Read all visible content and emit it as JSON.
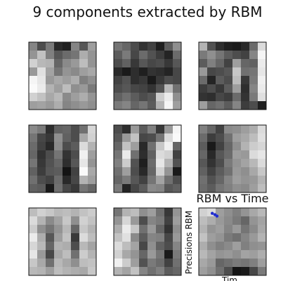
{
  "figure": {
    "title": "9 components extracted by RBM"
  },
  "chart_data": [
    {
      "type": "heatmap",
      "colormap": "gray",
      "grid": false,
      "values": [
        [
          0.52,
          0.3,
          0.48,
          0.16,
          0.12,
          0.52,
          0.34,
          0.62
        ],
        [
          0.58,
          0.76,
          0.5,
          0.34,
          0.42,
          0.46,
          0.68,
          0.58
        ],
        [
          0.82,
          0.72,
          0.7,
          0.4,
          0.54,
          0.6,
          0.74,
          0.58
        ],
        [
          0.6,
          0.88,
          0.64,
          0.46,
          0.58,
          0.54,
          0.62,
          0.66
        ],
        [
          0.96,
          0.9,
          0.6,
          0.66,
          0.62,
          0.68,
          0.5,
          0.56
        ],
        [
          0.98,
          0.92,
          0.7,
          0.62,
          0.74,
          0.56,
          0.6,
          0.48
        ],
        [
          0.82,
          0.76,
          0.66,
          0.72,
          0.54,
          0.62,
          0.68,
          0.58
        ],
        [
          0.62,
          0.64,
          0.6,
          0.68,
          0.52,
          0.56,
          0.6,
          0.56
        ]
      ]
    },
    {
      "type": "heatmap",
      "colormap": "gray",
      "grid": false,
      "values": [
        [
          0.46,
          0.4,
          0.3,
          0.2,
          0.26,
          0.12,
          0.36,
          0.56
        ],
        [
          0.36,
          0.48,
          0.28,
          0.42,
          0.32,
          0.24,
          0.14,
          0.42
        ],
        [
          0.3,
          0.38,
          0.22,
          0.34,
          0.28,
          0.3,
          0.22,
          0.34
        ],
        [
          0.16,
          0.1,
          0.18,
          0.12,
          0.2,
          0.18,
          0.14,
          0.28
        ],
        [
          0.26,
          0.32,
          0.18,
          0.22,
          0.1,
          0.22,
          0.3,
          0.28
        ],
        [
          0.3,
          0.34,
          0.28,
          0.26,
          0.2,
          0.32,
          0.72,
          0.44
        ],
        [
          0.38,
          0.44,
          0.36,
          0.3,
          0.34,
          0.8,
          0.92,
          0.56
        ],
        [
          0.48,
          0.52,
          0.4,
          0.46,
          0.36,
          0.7,
          0.96,
          0.62
        ]
      ]
    },
    {
      "type": "heatmap",
      "colormap": "gray",
      "grid": false,
      "values": [
        [
          0.7,
          0.32,
          0.18,
          0.12,
          0.1,
          0.16,
          0.42,
          0.86
        ],
        [
          0.48,
          0.56,
          0.46,
          0.36,
          0.3,
          0.26,
          0.52,
          0.96
        ],
        [
          0.36,
          0.5,
          0.4,
          0.26,
          0.62,
          0.4,
          0.38,
          0.92
        ],
        [
          0.6,
          0.28,
          0.3,
          0.34,
          0.78,
          0.44,
          0.46,
          0.9
        ],
        [
          0.42,
          0.14,
          0.36,
          0.3,
          0.74,
          0.22,
          0.48,
          0.94
        ],
        [
          0.24,
          0.3,
          0.22,
          0.36,
          0.62,
          0.18,
          0.52,
          0.92
        ],
        [
          0.2,
          0.18,
          0.28,
          0.24,
          0.42,
          0.2,
          0.48,
          0.88
        ],
        [
          0.62,
          0.4,
          0.44,
          0.36,
          0.52,
          0.24,
          0.3,
          0.12
        ]
      ]
    },
    {
      "type": "heatmap",
      "colormap": "gray",
      "grid": false,
      "values": [
        [
          0.54,
          0.48,
          0.18,
          0.38,
          0.4,
          0.3,
          0.44,
          0.84
        ],
        [
          0.46,
          0.28,
          0.22,
          0.56,
          0.38,
          0.3,
          0.66,
          0.82
        ],
        [
          0.42,
          0.26,
          0.16,
          0.54,
          0.3,
          0.36,
          0.86,
          0.7
        ],
        [
          0.4,
          0.2,
          0.3,
          0.46,
          0.2,
          0.3,
          0.94,
          0.62
        ],
        [
          0.46,
          0.22,
          0.32,
          0.4,
          0.18,
          0.34,
          0.9,
          0.58
        ],
        [
          0.38,
          0.24,
          0.34,
          0.36,
          0.08,
          0.26,
          0.98,
          0.66
        ],
        [
          0.44,
          0.3,
          0.26,
          0.42,
          0.16,
          0.28,
          0.7,
          0.62
        ],
        [
          0.38,
          0.36,
          0.1,
          0.44,
          0.28,
          0.22,
          0.46,
          0.4
        ]
      ]
    },
    {
      "type": "heatmap",
      "colormap": "gray",
      "grid": false,
      "values": [
        [
          0.3,
          0.18,
          0.6,
          0.36,
          0.5,
          0.22,
          0.6,
          0.96
        ],
        [
          0.34,
          0.6,
          0.76,
          0.28,
          0.3,
          0.46,
          0.86,
          0.98
        ],
        [
          0.4,
          0.76,
          0.62,
          0.16,
          0.44,
          0.78,
          0.94,
          0.4
        ],
        [
          0.46,
          0.92,
          0.44,
          0.18,
          0.38,
          0.86,
          0.82,
          0.26
        ],
        [
          0.5,
          0.8,
          0.32,
          0.12,
          0.42,
          0.9,
          0.7,
          0.32
        ],
        [
          0.44,
          0.62,
          0.3,
          0.16,
          0.4,
          0.82,
          0.58,
          0.1
        ],
        [
          0.4,
          0.48,
          0.34,
          0.26,
          0.46,
          0.64,
          0.44,
          0.3
        ],
        [
          0.48,
          0.14,
          0.28,
          0.36,
          0.54,
          0.52,
          0.34,
          0.38
        ]
      ]
    },
    {
      "type": "heatmap",
      "colormap": "gray",
      "grid": false,
      "values": [
        [
          0.5,
          0.4,
          0.26,
          0.54,
          0.56,
          0.62,
          0.68,
          0.86
        ],
        [
          0.42,
          0.24,
          0.3,
          0.44,
          0.62,
          0.66,
          0.74,
          0.88
        ],
        [
          0.36,
          0.1,
          0.26,
          0.4,
          0.56,
          0.7,
          0.8,
          0.84
        ],
        [
          0.4,
          0.16,
          0.34,
          0.42,
          0.62,
          0.6,
          0.86,
          0.9
        ],
        [
          0.34,
          0.2,
          0.3,
          0.48,
          0.58,
          0.64,
          0.72,
          0.86
        ],
        [
          0.38,
          0.26,
          0.36,
          0.44,
          0.6,
          0.56,
          0.66,
          0.78
        ],
        [
          0.44,
          0.32,
          0.4,
          0.52,
          0.62,
          0.58,
          0.6,
          0.7
        ],
        [
          0.42,
          0.36,
          0.46,
          0.5,
          0.56,
          0.54,
          0.62,
          0.74
        ]
      ]
    },
    {
      "type": "heatmap",
      "colormap": "gray",
      "grid": false,
      "values": [
        [
          0.74,
          0.82,
          0.78,
          0.72,
          0.74,
          0.7,
          0.76,
          0.8
        ],
        [
          0.86,
          0.7,
          0.54,
          0.64,
          0.78,
          0.56,
          0.82,
          0.76
        ],
        [
          0.8,
          0.56,
          0.46,
          0.58,
          0.72,
          0.4,
          0.78,
          0.7
        ],
        [
          0.92,
          0.68,
          0.34,
          0.62,
          0.76,
          0.22,
          0.86,
          0.74
        ],
        [
          0.84,
          0.72,
          0.4,
          0.7,
          0.68,
          0.3,
          0.72,
          0.64
        ],
        [
          0.9,
          0.6,
          0.28,
          0.66,
          0.74,
          0.44,
          0.8,
          0.7
        ],
        [
          0.78,
          0.66,
          0.44,
          0.72,
          0.66,
          0.56,
          0.74,
          0.76
        ],
        [
          0.72,
          0.7,
          0.62,
          0.74,
          0.7,
          0.68,
          0.66,
          0.78
        ]
      ]
    },
    {
      "type": "heatmap",
      "colormap": "gray",
      "grid": false,
      "values": [
        [
          0.46,
          0.7,
          0.74,
          0.56,
          0.62,
          0.44,
          0.22,
          0.58
        ],
        [
          0.58,
          0.84,
          0.6,
          0.3,
          0.52,
          0.48,
          0.26,
          0.62
        ],
        [
          0.68,
          0.92,
          0.78,
          0.44,
          0.6,
          0.4,
          0.2,
          0.56
        ],
        [
          0.76,
          0.88,
          0.54,
          0.36,
          0.52,
          0.5,
          0.28,
          0.6
        ],
        [
          0.86,
          0.74,
          0.64,
          0.28,
          0.56,
          0.38,
          0.3,
          0.52
        ],
        [
          0.82,
          0.66,
          0.58,
          0.4,
          0.6,
          0.46,
          0.1,
          0.48
        ],
        [
          0.94,
          0.8,
          0.62,
          0.32,
          0.48,
          0.42,
          0.26,
          0.44
        ],
        [
          0.7,
          0.64,
          0.76,
          0.52,
          0.44,
          0.5,
          0.36,
          0.4
        ]
      ]
    },
    {
      "type": "heatmap",
      "colormap": "gray",
      "grid": false,
      "title": "RBM vs Time",
      "ylabel": "Precisions RBM",
      "xlabel": "Tim",
      "values": [
        [
          0.82,
          0.86,
          0.62,
          0.56,
          0.5,
          0.58,
          0.66,
          0.72
        ],
        [
          0.74,
          0.68,
          0.6,
          0.54,
          0.48,
          0.4,
          0.58,
          0.64
        ],
        [
          0.7,
          0.58,
          0.62,
          0.52,
          0.6,
          0.46,
          0.54,
          0.66
        ],
        [
          0.76,
          0.62,
          0.58,
          0.48,
          0.44,
          0.52,
          0.6,
          0.7
        ],
        [
          0.68,
          0.56,
          0.5,
          0.54,
          0.62,
          0.5,
          0.56,
          0.58
        ],
        [
          0.72,
          0.64,
          0.58,
          0.6,
          0.56,
          0.64,
          0.62,
          0.68
        ],
        [
          0.66,
          0.6,
          0.4,
          0.44,
          0.48,
          0.46,
          0.5,
          0.62
        ],
        [
          0.62,
          0.56,
          0.44,
          0.3,
          0.08,
          0.1,
          0.28,
          0.48
        ]
      ],
      "overlay_series": {
        "type": "scatter",
        "color": "#1f2ccf",
        "points": [
          {
            "x": 0.2,
            "y": 0.08
          },
          {
            "x": 0.24,
            "y": 0.1
          },
          {
            "x": 0.27,
            "y": 0.12
          }
        ]
      }
    }
  ]
}
